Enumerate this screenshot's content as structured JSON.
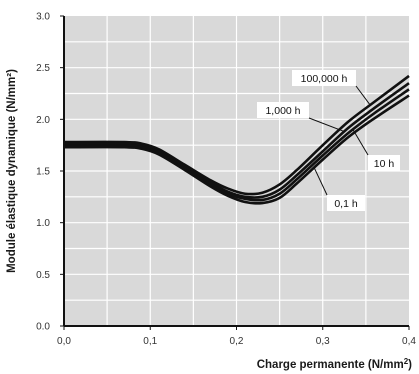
{
  "chart_data": {
    "type": "line",
    "title": "",
    "xlabel": "Charge permanente (N/mm",
    "xlabel_sup": "2",
    "xlabel_end": ")",
    "ylabel": "Module élastique dynamique (N/mm²)",
    "xlim": [
      0,
      0.4
    ],
    "ylim": [
      0,
      3.0
    ],
    "x_ticks": [
      0,
      0.1,
      0.2,
      0.3,
      0.4
    ],
    "x_tick_labels": [
      "0,0",
      "0,1",
      "0,2",
      "0,3",
      "0,4"
    ],
    "y_ticks": [
      0,
      0.5,
      1.0,
      1.5,
      2.0,
      2.5,
      3.0
    ],
    "y_tick_labels": [
      "0.0",
      "0.5",
      "1.0",
      "1.5",
      "2.0",
      "2.5",
      "3.0"
    ],
    "grid": true,
    "x_minor_step": 0.05,
    "y_minor_step": 0.25,
    "line_color": "#111111",
    "grid_color": "#ffffff",
    "plot_background": "#d9d9d9",
    "series": [
      {
        "name": "100,000 h",
        "x": [
          0,
          0.07,
          0.09,
          0.11,
          0.14,
          0.17,
          0.19,
          0.21,
          0.23,
          0.25,
          0.27,
          0.3,
          0.33,
          0.36,
          0.4
        ],
        "y": [
          1.78,
          1.78,
          1.765,
          1.71,
          1.56,
          1.41,
          1.33,
          1.28,
          1.29,
          1.37,
          1.51,
          1.75,
          1.98,
          2.17,
          2.42
        ]
      },
      {
        "name": "1,000 h",
        "x": [
          0,
          0.07,
          0.09,
          0.11,
          0.14,
          0.17,
          0.19,
          0.21,
          0.23,
          0.25,
          0.27,
          0.3,
          0.33,
          0.36,
          0.4
        ],
        "y": [
          1.76,
          1.76,
          1.745,
          1.69,
          1.54,
          1.39,
          1.3,
          1.25,
          1.25,
          1.32,
          1.46,
          1.69,
          1.92,
          2.11,
          2.35
        ]
      },
      {
        "name": "10 h",
        "x": [
          0,
          0.07,
          0.09,
          0.11,
          0.14,
          0.17,
          0.19,
          0.21,
          0.23,
          0.25,
          0.27,
          0.3,
          0.33,
          0.36,
          0.4
        ],
        "y": [
          1.745,
          1.745,
          1.73,
          1.675,
          1.525,
          1.37,
          1.28,
          1.23,
          1.22,
          1.28,
          1.42,
          1.65,
          1.87,
          2.06,
          2.29
        ]
      },
      {
        "name": "0,1 h",
        "x": [
          0,
          0.07,
          0.09,
          0.11,
          0.14,
          0.17,
          0.19,
          0.21,
          0.23,
          0.25,
          0.27,
          0.3,
          0.33,
          0.36,
          0.4
        ],
        "y": [
          1.73,
          1.73,
          1.715,
          1.66,
          1.51,
          1.35,
          1.26,
          1.2,
          1.19,
          1.24,
          1.38,
          1.61,
          1.83,
          2.01,
          2.23
        ]
      }
    ],
    "annotations": [
      {
        "text": "100,000 h",
        "series": "100,000 h",
        "point_x": 0.355
      },
      {
        "text": "1,000 h",
        "series": "1,000 h",
        "point_x": 0.325
      },
      {
        "text": "10 h",
        "series": "10 h",
        "point_x": 0.335
      },
      {
        "text": "0,1 h",
        "series": "0,1 h",
        "point_x": 0.29
      }
    ]
  }
}
